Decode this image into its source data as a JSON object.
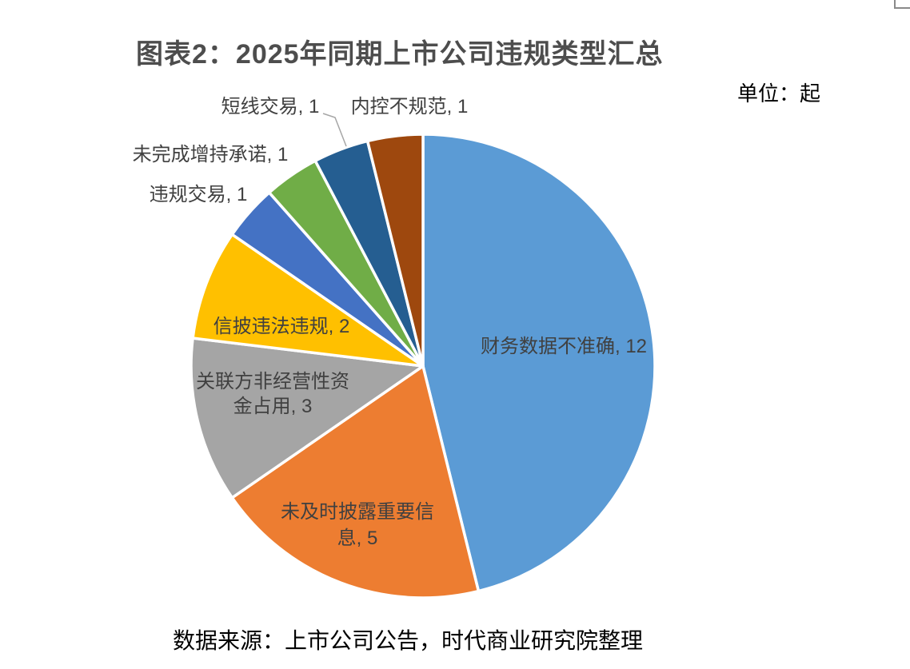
{
  "page": {
    "title": "图表2：2025年同期上市公司违规类型汇总",
    "unit_label": "单位：起",
    "source": "数据来源：上市公司公告，时代商业研究院整理"
  },
  "chart_data": {
    "type": "pie",
    "title": "图表2：2025年同期上市公司违规类型汇总",
    "unit": "单位：起",
    "source": "数据来源：上市公司公告，时代商业研究院整理",
    "total": 26,
    "start_angle_deg": 0,
    "direction": "clockwise",
    "legend_position": "none",
    "label_format": "name, value",
    "label_color": "#404040",
    "slice_border_color": "#FFFFFF",
    "leader_line_color": "#A6A6A6",
    "slices": [
      {
        "label": "财务数据不准确",
        "value": 12,
        "color": "#5B9BD5",
        "label_placement": "inside"
      },
      {
        "label": "未及时披露重要信息",
        "value": 5,
        "color": "#ED7D31",
        "label_placement": "inside"
      },
      {
        "label": "关联方非经营性资金占用",
        "value": 3,
        "color": "#A5A5A5",
        "label_placement": "inside"
      },
      {
        "label": "信披违法违规",
        "value": 2,
        "color": "#FFC000",
        "label_placement": "inside"
      },
      {
        "label": "违规交易",
        "value": 1,
        "color": "#4472C4",
        "label_placement": "outside"
      },
      {
        "label": "未完成增持承诺",
        "value": 1,
        "color": "#70AD47",
        "label_placement": "outside"
      },
      {
        "label": "短线交易",
        "value": 1,
        "color": "#255E91",
        "label_placement": "outside"
      },
      {
        "label": "内控不规范",
        "value": 1,
        "color": "#9E480E",
        "label_placement": "outside"
      }
    ]
  }
}
